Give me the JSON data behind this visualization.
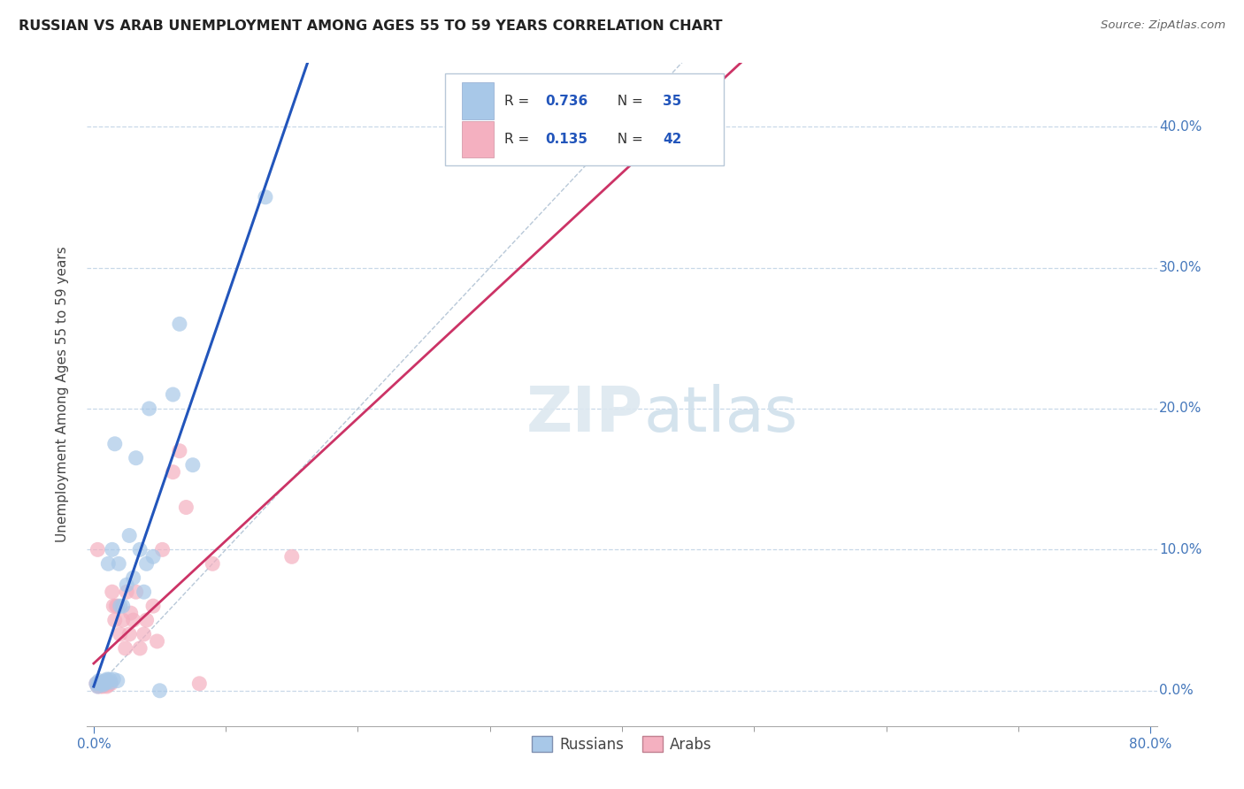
{
  "title": "RUSSIAN VS ARAB UNEMPLOYMENT AMONG AGES 55 TO 59 YEARS CORRELATION CHART",
  "source": "Source: ZipAtlas.com",
  "ylabel": "Unemployment Among Ages 55 to 59 years",
  "xlim": [
    -0.005,
    0.805
  ],
  "ylim": [
    -0.025,
    0.445
  ],
  "xticks_major": [
    0.0,
    0.8
  ],
  "xtick_labels_major": [
    "0.0%",
    "80.0%"
  ],
  "xticks_minor": [
    0.1,
    0.2,
    0.3,
    0.4,
    0.5,
    0.6,
    0.7
  ],
  "yticks": [
    0.0,
    0.1,
    0.2,
    0.3,
    0.4
  ],
  "ytick_labels_right": [
    "0.0%",
    "10.0%",
    "20.0%",
    "30.0%",
    "40.0%"
  ],
  "russian_R": 0.736,
  "russian_N": 35,
  "arab_R": 0.135,
  "arab_N": 42,
  "russian_color": "#a8c8e8",
  "arab_color": "#f4b0c0",
  "russian_line_color": "#2255bb",
  "arab_line_color": "#cc3366",
  "legend_russian_label": "Russians",
  "legend_arab_label": "Arabs",
  "background_color": "#ffffff",
  "grid_color": "#c8d8e8",
  "watermark": "ZIPatlas",
  "russian_x": [
    0.002,
    0.003,
    0.004,
    0.005,
    0.006,
    0.007,
    0.007,
    0.008,
    0.009,
    0.01,
    0.01,
    0.011,
    0.012,
    0.013,
    0.014,
    0.015,
    0.016,
    0.018,
    0.019,
    0.02,
    0.022,
    0.025,
    0.027,
    0.03,
    0.032,
    0.035,
    0.038,
    0.04,
    0.042,
    0.045,
    0.05,
    0.06,
    0.065,
    0.075,
    0.13
  ],
  "russian_y": [
    0.005,
    0.003,
    0.007,
    0.005,
    0.005,
    0.004,
    0.006,
    0.005,
    0.007,
    0.006,
    0.008,
    0.09,
    0.008,
    0.006,
    0.1,
    0.008,
    0.175,
    0.007,
    0.09,
    0.06,
    0.06,
    0.075,
    0.11,
    0.08,
    0.165,
    0.1,
    0.07,
    0.09,
    0.2,
    0.095,
    0.0,
    0.21,
    0.26,
    0.16,
    0.35
  ],
  "arab_x": [
    0.002,
    0.003,
    0.003,
    0.004,
    0.005,
    0.005,
    0.006,
    0.007,
    0.007,
    0.008,
    0.008,
    0.009,
    0.01,
    0.01,
    0.011,
    0.012,
    0.013,
    0.014,
    0.015,
    0.016,
    0.017,
    0.018,
    0.02,
    0.022,
    0.024,
    0.025,
    0.027,
    0.028,
    0.03,
    0.032,
    0.035,
    0.038,
    0.04,
    0.045,
    0.048,
    0.052,
    0.06,
    0.065,
    0.07,
    0.08,
    0.09,
    0.15
  ],
  "arab_y": [
    0.005,
    0.003,
    0.1,
    0.005,
    0.004,
    0.003,
    0.005,
    0.003,
    0.006,
    0.004,
    0.006,
    0.005,
    0.003,
    0.007,
    0.004,
    0.006,
    0.005,
    0.07,
    0.06,
    0.05,
    0.06,
    0.06,
    0.04,
    0.05,
    0.03,
    0.07,
    0.04,
    0.055,
    0.05,
    0.07,
    0.03,
    0.04,
    0.05,
    0.06,
    0.035,
    0.1,
    0.155,
    0.17,
    0.13,
    0.005,
    0.09,
    0.095
  ]
}
